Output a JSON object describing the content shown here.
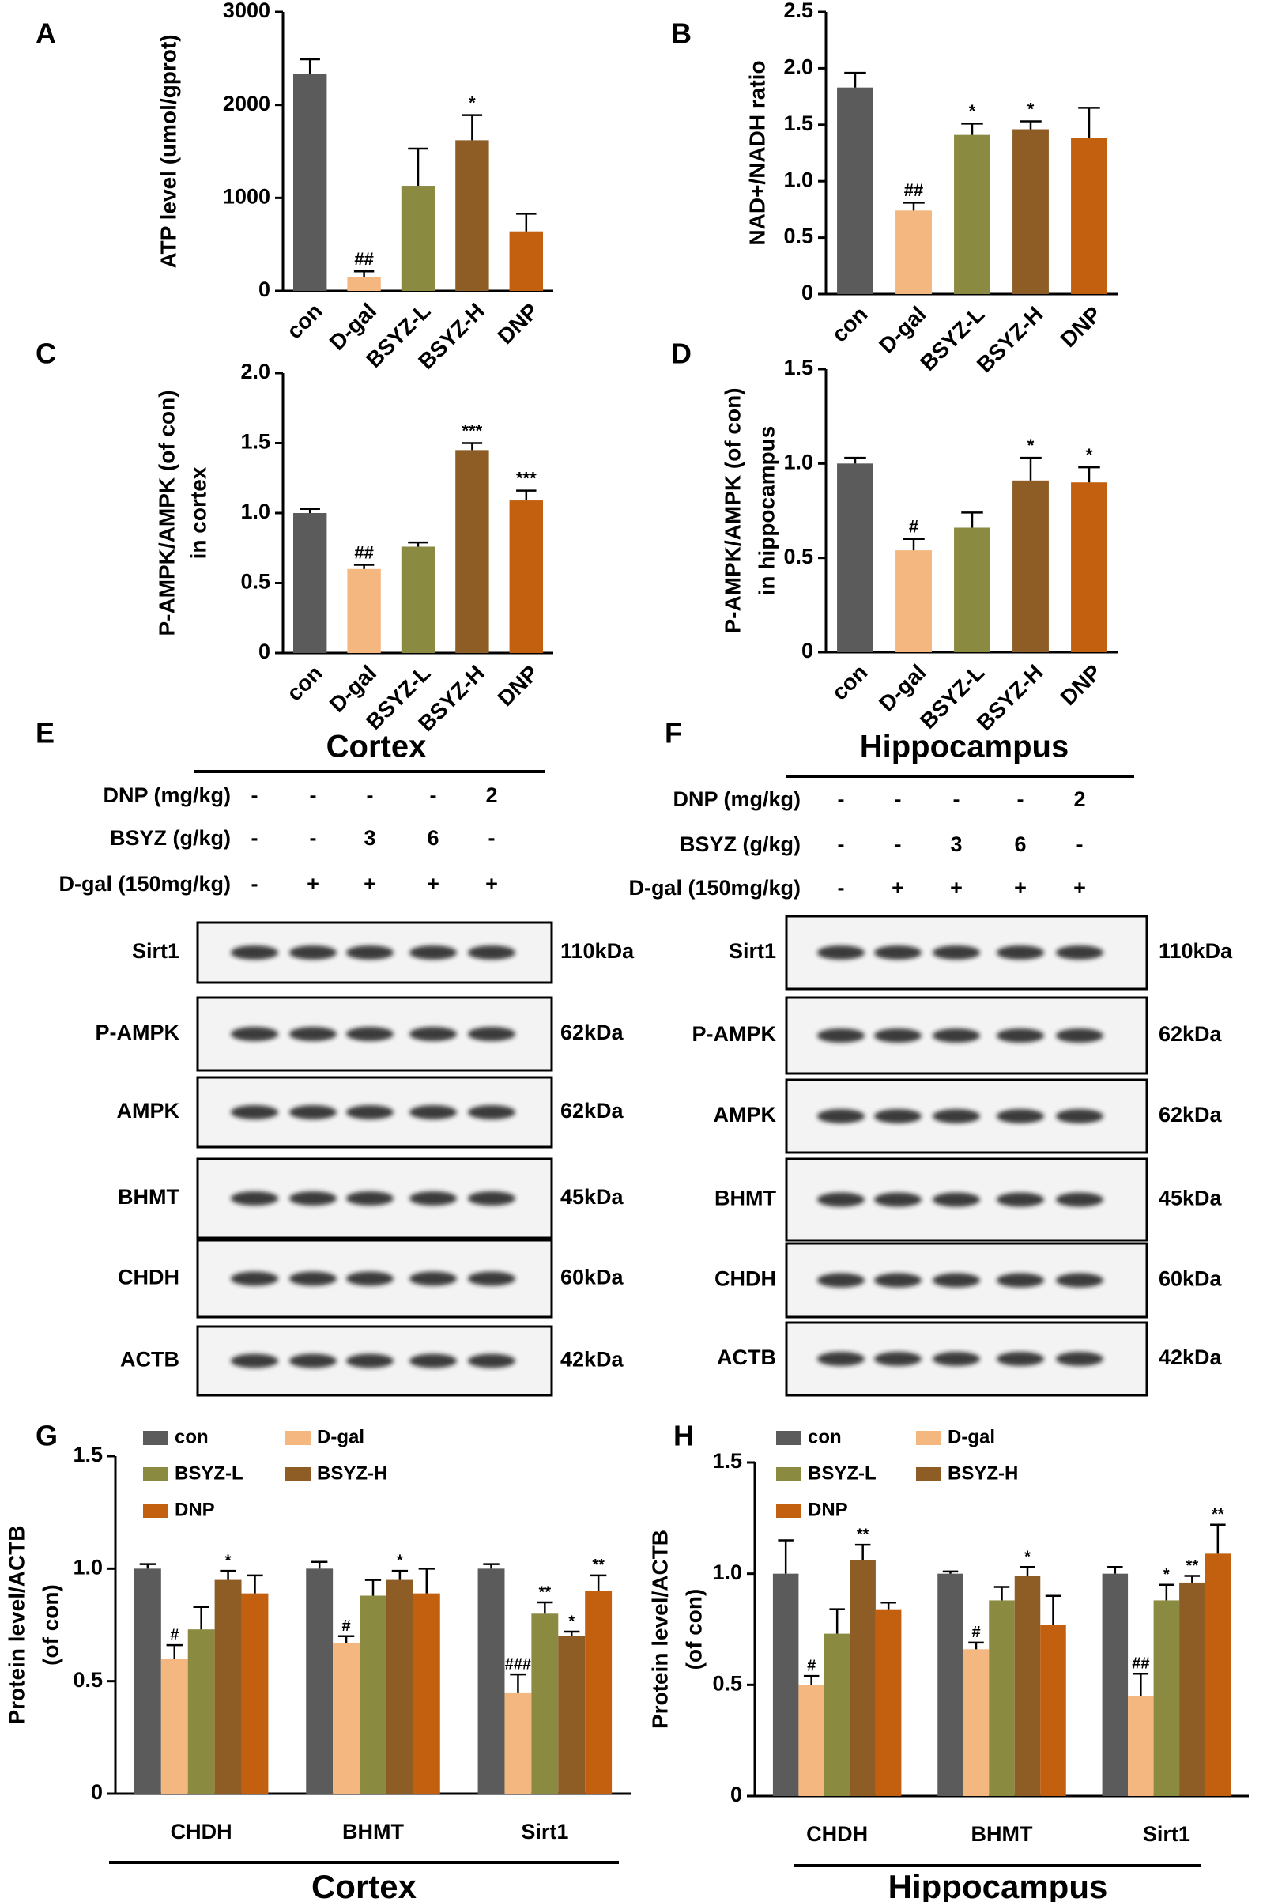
{
  "chart_data": [
    {
      "type": "bar",
      "label": "A",
      "ylabel": [
        "ATP level (umol/gprot)"
      ],
      "categories": [
        "con",
        "D-gal",
        "BSYZ-L",
        "BSYZ-H",
        "DNP"
      ],
      "colors": [
        "#5b5b5b",
        "#f4b77f",
        "#8b8a41",
        "#8e5d26",
        "#c2600f"
      ],
      "values": [
        2330,
        150,
        1130,
        1620,
        640
      ],
      "errors": [
        160,
        60,
        400,
        270,
        190
      ],
      "annotations": [
        null,
        "##",
        null,
        "*",
        null
      ],
      "ylim": [
        0,
        3000
      ],
      "yticks": [
        0,
        1000,
        2000,
        3000
      ]
    },
    {
      "type": "bar",
      "label": "B",
      "ylabel": [
        "NAD+/NADH ratio"
      ],
      "categories": [
        "con",
        "D-gal",
        "BSYZ-L",
        "BSYZ-H",
        "DNP"
      ],
      "colors": [
        "#5b5b5b",
        "#f4b77f",
        "#8b8a41",
        "#8e5d26",
        "#c2600f"
      ],
      "values": [
        1.83,
        0.74,
        1.41,
        1.46,
        1.38
      ],
      "errors": [
        0.13,
        0.07,
        0.1,
        0.07,
        0.27
      ],
      "annotations": [
        null,
        "##",
        "*",
        "*",
        null
      ],
      "ylim": [
        0,
        2.5
      ],
      "yticks": [
        0,
        0.5,
        {
          "value": 1,
          "label": "1.0"
        },
        1.5,
        {
          "value": 2,
          "label": "2.0"
        },
        2.5
      ]
    },
    {
      "type": "bar",
      "label": "C",
      "ylabel": [
        "P-AMPK/AMPK (of con)",
        "in cortex"
      ],
      "categories": [
        "con",
        "D-gal",
        "BSYZ-L",
        "BSYZ-H",
        "DNP"
      ],
      "colors": [
        "#5b5b5b",
        "#f4b77f",
        "#8b8a41",
        "#8e5d26",
        "#c2600f"
      ],
      "values": [
        1.0,
        0.6,
        0.76,
        1.45,
        1.09
      ],
      "errors": [
        0.03,
        0.03,
        0.03,
        0.05,
        0.07
      ],
      "annotations": [
        null,
        "##",
        null,
        "***",
        "***"
      ],
      "ylim": [
        0,
        2
      ],
      "yticks": [
        0,
        0.5,
        {
          "value": 1,
          "label": "1.0"
        },
        1.5,
        {
          "value": 2,
          "label": "2.0"
        }
      ]
    },
    {
      "type": "bar",
      "label": "D",
      "ylabel": [
        "P-AMPK/AMPK (of con)",
        "in hippocampus"
      ],
      "categories": [
        "con",
        "D-gal",
        "BSYZ-L",
        "BSYZ-H",
        "DNP"
      ],
      "colors": [
        "#5b5b5b",
        "#f4b77f",
        "#8b8a41",
        "#8e5d26",
        "#c2600f"
      ],
      "values": [
        1.0,
        0.54,
        0.66,
        0.91,
        0.9
      ],
      "errors": [
        0.03,
        0.06,
        0.08,
        0.12,
        0.08
      ],
      "annotations": [
        null,
        "#",
        null,
        "*",
        "*"
      ],
      "ylim": [
        0,
        1.5
      ],
      "yticks": [
        0,
        0.5,
        {
          "value": 1,
          "label": "1.0"
        },
        1.5
      ]
    },
    {
      "type": "grouped_bar",
      "label": "G",
      "ylabel": [
        "Protein level/ACTB",
        "(of con)"
      ],
      "footer": "Cortex",
      "categories": [
        "CHDH",
        "BHMT",
        "Sirt1"
      ],
      "series": [
        {
          "name": "con",
          "color": "#5b5b5b",
          "values": [
            1.0,
            1.0,
            1.0
          ],
          "errors": [
            0.02,
            0.03,
            0.02
          ],
          "annotations": [
            null,
            null,
            null
          ]
        },
        {
          "name": "D-gal",
          "color": "#f4b77f",
          "values": [
            0.6,
            0.67,
            0.45
          ],
          "errors": [
            0.06,
            0.03,
            0.08
          ],
          "annotations": [
            "#",
            "#",
            "###"
          ]
        },
        {
          "name": "BSYZ-L",
          "color": "#8b8a41",
          "values": [
            0.73,
            0.88,
            0.8
          ],
          "errors": [
            0.1,
            0.07,
            0.05
          ],
          "annotations": [
            null,
            null,
            "**"
          ]
        },
        {
          "name": "BSYZ-H",
          "color": "#8e5d26",
          "values": [
            0.95,
            0.95,
            0.7
          ],
          "errors": [
            0.04,
            0.04,
            0.02
          ],
          "annotations": [
            "*",
            "*",
            "*"
          ]
        },
        {
          "name": "DNP",
          "color": "#c2600f",
          "values": [
            0.89,
            0.89,
            0.9
          ],
          "errors": [
            0.08,
            0.11,
            0.07
          ],
          "annotations": [
            null,
            null,
            "**"
          ]
        }
      ],
      "ylim": [
        0,
        1.5
      ],
      "yticks": [
        0,
        0.5,
        {
          "value": 1,
          "label": "1.0"
        },
        1.5
      ]
    },
    {
      "type": "grouped_bar",
      "label": "H",
      "ylabel": [
        "Protein level/ACTB",
        "(of con)"
      ],
      "footer": "Hippocampus",
      "categories": [
        "CHDH",
        "BHMT",
        "Sirt1"
      ],
      "series": [
        {
          "name": "con",
          "color": "#5b5b5b",
          "values": [
            1.0,
            1.0,
            1.0
          ],
          "errors": [
            0.15,
            0.01,
            0.03
          ],
          "annotations": [
            null,
            null,
            null
          ]
        },
        {
          "name": "D-gal",
          "color": "#f4b77f",
          "values": [
            0.5,
            0.66,
            0.45
          ],
          "errors": [
            0.04,
            0.03,
            0.1
          ],
          "annotations": [
            "#",
            "#",
            "##"
          ]
        },
        {
          "name": "BSYZ-L",
          "color": "#8b8a41",
          "values": [
            0.73,
            0.88,
            0.88
          ],
          "errors": [
            0.11,
            0.06,
            0.07
          ],
          "annotations": [
            null,
            null,
            "*"
          ]
        },
        {
          "name": "BSYZ-H",
          "color": "#8e5d26",
          "values": [
            1.06,
            0.99,
            0.96
          ],
          "errors": [
            0.07,
            0.04,
            0.03
          ],
          "annotations": [
            "**",
            "*",
            "**"
          ]
        },
        {
          "name": "DNP",
          "color": "#c2600f",
          "values": [
            0.84,
            0.77,
            1.09
          ],
          "errors": [
            0.03,
            0.13,
            0.13
          ],
          "annotations": [
            null,
            null,
            "**"
          ]
        }
      ],
      "ylim": [
        0,
        1.5
      ],
      "yticks": [
        0,
        0.5,
        {
          "value": 1,
          "label": "1.0"
        },
        1.5
      ]
    }
  ],
  "blots": [
    {
      "label": "E",
      "title": "Cortex",
      "treatments": [
        {
          "name": "DNP (mg/kg)",
          "lanes": [
            "-",
            "-",
            "-",
            "-",
            "2"
          ]
        },
        {
          "name": "BSYZ (g/kg)",
          "lanes": [
            "-",
            "-",
            "3",
            "6",
            "-"
          ]
        },
        {
          "name": "D-gal (150mg/kg)",
          "lanes": [
            "-",
            "+",
            "+",
            "+",
            "+"
          ]
        }
      ],
      "bands": [
        {
          "protein": "Sirt1",
          "size": "110kDa"
        },
        {
          "protein": "P-AMPK",
          "size": "62kDa"
        },
        {
          "protein": "AMPK",
          "size": "62kDa"
        },
        {
          "protein": "BHMT",
          "size": "45kDa"
        },
        {
          "protein": "CHDH",
          "size": "60kDa"
        },
        {
          "protein": "ACTB",
          "size": "42kDa"
        }
      ]
    },
    {
      "label": "F",
      "title": "Hippocampus",
      "treatments": [
        {
          "name": "DNP (mg/kg)",
          "lanes": [
            "-",
            "-",
            "-",
            "-",
            "2"
          ]
        },
        {
          "name": "BSYZ (g/kg)",
          "lanes": [
            "-",
            "-",
            "3",
            "6",
            "-"
          ]
        },
        {
          "name": "D-gal (150mg/kg)",
          "lanes": [
            "-",
            "+",
            "+",
            "+",
            "+"
          ]
        }
      ],
      "bands": [
        {
          "protein": "Sirt1",
          "size": "110kDa"
        },
        {
          "protein": "P-AMPK",
          "size": "62kDa"
        },
        {
          "protein": "AMPK",
          "size": "62kDa"
        },
        {
          "protein": "BHMT",
          "size": "45kDa"
        },
        {
          "protein": "CHDH",
          "size": "60kDa"
        },
        {
          "protein": "ACTB",
          "size": "42kDa"
        }
      ]
    }
  ]
}
